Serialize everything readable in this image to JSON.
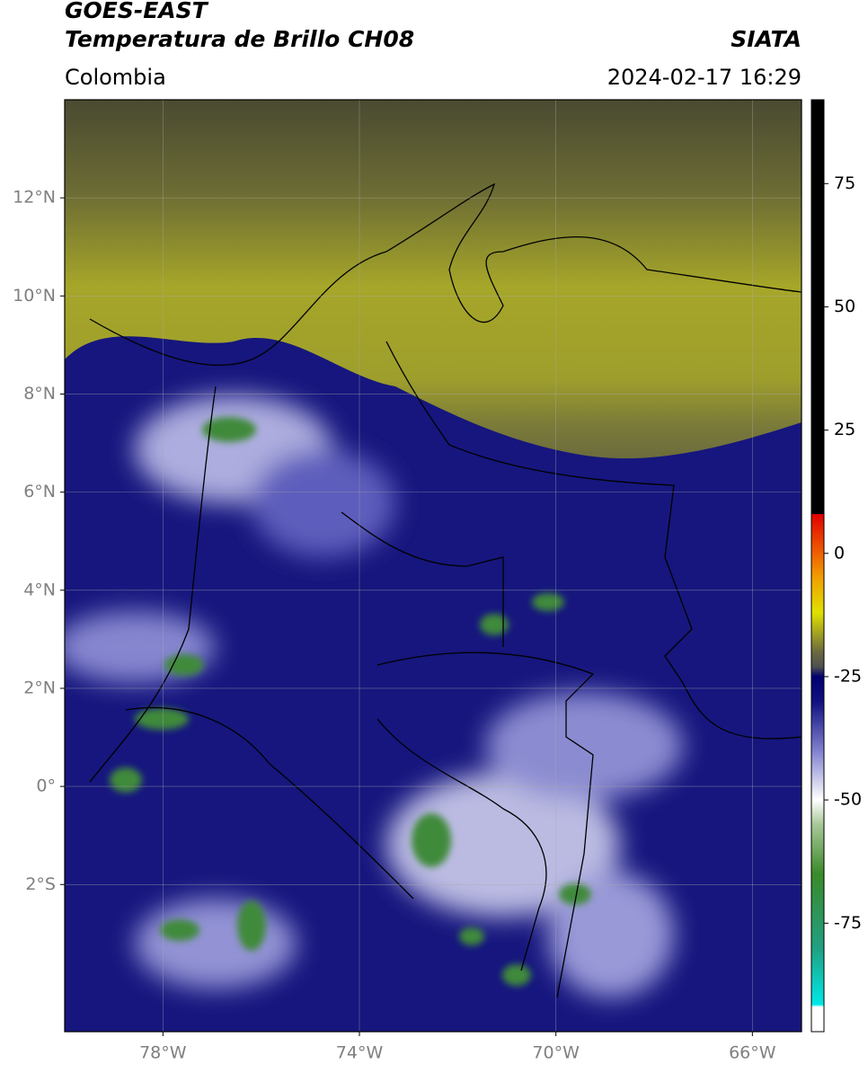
{
  "header": {
    "title": "GOES-EAST",
    "subtitle": "Temperatura de Brillo CH08",
    "region": "Colombia",
    "source": "SIATA",
    "datetime": "2024-02-17 16:29"
  },
  "map": {
    "xlim": [
      -80,
      -65
    ],
    "ylim": [
      -5,
      14
    ],
    "xticks": [
      {
        "value": -78,
        "label": "78°W"
      },
      {
        "value": -74,
        "label": "74°W"
      },
      {
        "value": -70,
        "label": "70°W"
      },
      {
        "value": -66,
        "label": "66°W"
      }
    ],
    "yticks": [
      {
        "value": 12,
        "label": "12°N"
      },
      {
        "value": 10,
        "label": "10°N"
      },
      {
        "value": 8,
        "label": "8°N"
      },
      {
        "value": 6,
        "label": "6°N"
      },
      {
        "value": 4,
        "label": "4°N"
      },
      {
        "value": 2,
        "label": "2°N"
      },
      {
        "value": 0,
        "label": "0°"
      },
      {
        "value": -2,
        "label": "2°S"
      }
    ],
    "grid": true
  },
  "colorbar": {
    "lim": [
      -97,
      92
    ],
    "ticks": [
      75,
      50,
      25,
      0,
      -25,
      -50,
      -75
    ],
    "colormap": [
      {
        "value": -97,
        "color": "#ffffff"
      },
      {
        "value": -92,
        "color": "#ffffff"
      },
      {
        "value": -91.5,
        "color": "#00e8e8"
      },
      {
        "value": -80,
        "color": "#20a080"
      },
      {
        "value": -65,
        "color": "#3a8a2a"
      },
      {
        "value": -55,
        "color": "#a8c898"
      },
      {
        "value": -50,
        "color": "#ffffff"
      },
      {
        "value": -40,
        "color": "#8080d0"
      },
      {
        "value": -30,
        "color": "#101080"
      },
      {
        "value": -25,
        "color": "#000070"
      },
      {
        "value": -23,
        "color": "#505050"
      },
      {
        "value": -20,
        "color": "#6a6a40"
      },
      {
        "value": -12,
        "color": "#e0e000"
      },
      {
        "value": -5,
        "color": "#f0a000"
      },
      {
        "value": 0,
        "color": "#f06000"
      },
      {
        "value": 8,
        "color": "#e00000"
      },
      {
        "value": 8.01,
        "color": "#000000"
      },
      {
        "value": 92,
        "color": "#000000"
      }
    ]
  }
}
